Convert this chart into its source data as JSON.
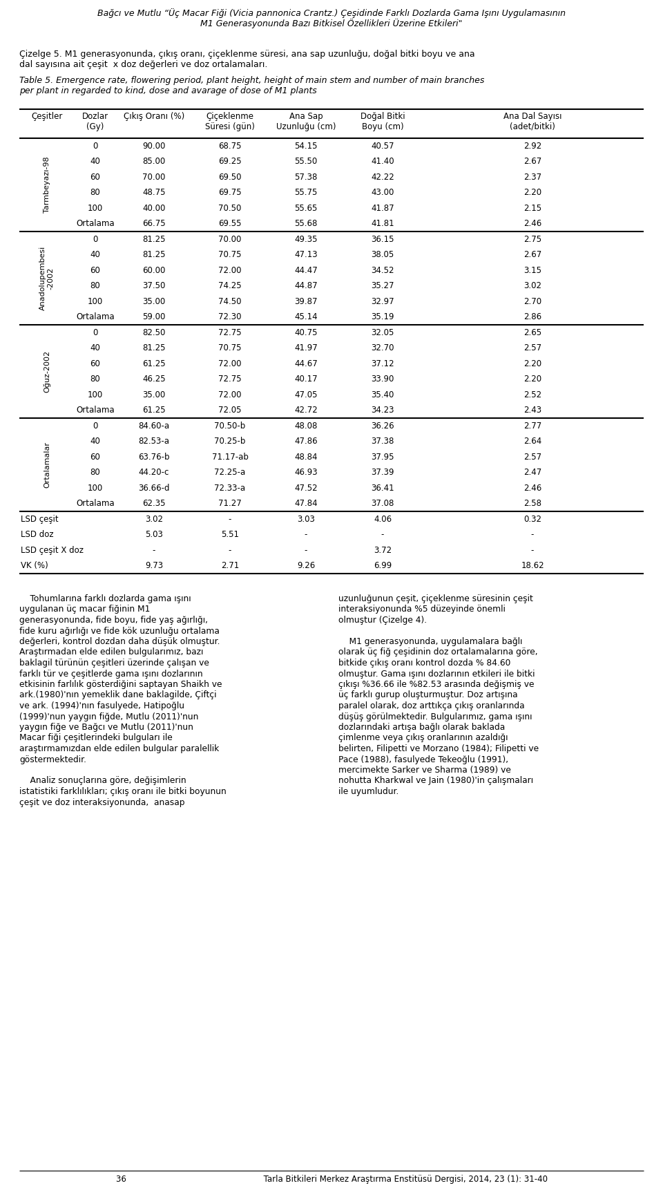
{
  "page_header_line1": "Bağcı ve Mutlu “Üç Macar Fiği (Vicia pannonica Crantz.) Çeşidinde Farklı Dozlarda Gama Işını Uygulamasının",
  "page_header_line2": "M1 Generasyonunda Bazı Bitkisel Özellikleri Üzerine Etkileri\"",
  "cizelge_line1": "Çizelge 5. M1 generasyonunda, çıkış oranı, çiçeklenme süresi, ana sap uzunluğu, doğal bitki boyu ve ana",
  "cizelge_line2": "dal sayısına ait çeşit  x doz değerleri ve doz ortalamaları.",
  "table_cap_line1": "Table 5. Emergence rate, flowering period, plant height, height of main stem and number of main branches",
  "table_cap_line2": "per plant in regarded to kind, dose and avarage of dose of M1 plants",
  "col_headers": [
    "Çeşitler",
    "Dozlar\n(Gy)",
    "Çıkış Oranı (%)",
    "Çiçeklenme\nSüresi (gün)",
    "Ana Sap\nUzunluğu (cm)",
    "Doğal Bitki\nBoyu (cm)",
    "Ana Dal Sayısı\n(adet/bitki)"
  ],
  "groups": [
    {
      "name": "Tarmbeyazı-98",
      "rows": [
        [
          "0",
          "90.00",
          "68.75",
          "54.15",
          "40.57",
          "2.92"
        ],
        [
          "40",
          "85.00",
          "69.25",
          "55.50",
          "41.40",
          "2.67"
        ],
        [
          "60",
          "70.00",
          "69.50",
          "57.38",
          "42.22",
          "2.37"
        ],
        [
          "80",
          "48.75",
          "69.75",
          "55.75",
          "43.00",
          "2.20"
        ],
        [
          "100",
          "40.00",
          "70.50",
          "55.65",
          "41.87",
          "2.15"
        ],
        [
          "Ortalama",
          "66.75",
          "69.55",
          "55.68",
          "41.81",
          "2.46"
        ]
      ]
    },
    {
      "name": "Anadolupembesi\n-2002",
      "rows": [
        [
          "0",
          "81.25",
          "70.00",
          "49.35",
          "36.15",
          "2.75"
        ],
        [
          "40",
          "81.25",
          "70.75",
          "47.13",
          "38.05",
          "2.67"
        ],
        [
          "60",
          "60.00",
          "72.00",
          "44.47",
          "34.52",
          "3.15"
        ],
        [
          "80",
          "37.50",
          "74.25",
          "44.87",
          "35.27",
          "3.02"
        ],
        [
          "100",
          "35.00",
          "74.50",
          "39.87",
          "32.97",
          "2.70"
        ],
        [
          "Ortalama",
          "59.00",
          "72.30",
          "45.14",
          "35.19",
          "2.86"
        ]
      ]
    },
    {
      "name": "Oğuz-2002",
      "rows": [
        [
          "0",
          "82.50",
          "72.75",
          "40.75",
          "32.05",
          "2.65"
        ],
        [
          "40",
          "81.25",
          "70.75",
          "41.97",
          "32.70",
          "2.57"
        ],
        [
          "60",
          "61.25",
          "72.00",
          "44.67",
          "37.12",
          "2.20"
        ],
        [
          "80",
          "46.25",
          "72.75",
          "40.17",
          "33.90",
          "2.20"
        ],
        [
          "100",
          "35.00",
          "72.00",
          "47.05",
          "35.40",
          "2.52"
        ],
        [
          "Ortalama",
          "61.25",
          "72.05",
          "42.72",
          "34.23",
          "2.43"
        ]
      ]
    },
    {
      "name": "Ortalamalar",
      "rows": [
        [
          "0",
          "84.60-a",
          "70.50-b",
          "48.08",
          "36.26",
          "2.77"
        ],
        [
          "40",
          "82.53-a",
          "70.25-b",
          "47.86",
          "37.38",
          "2.64"
        ],
        [
          "60",
          "63.76-b",
          "71.17-ab",
          "48.84",
          "37.95",
          "2.57"
        ],
        [
          "80",
          "44.20-c",
          "72.25-a",
          "46.93",
          "37.39",
          "2.47"
        ],
        [
          "100",
          "36.66-d",
          "72.33-a",
          "47.52",
          "36.41",
          "2.46"
        ],
        [
          "Ortalama",
          "62.35",
          "71.27",
          "47.84",
          "37.08",
          "2.58"
        ]
      ]
    }
  ],
  "lsd_rows": [
    [
      "LSD çeşit",
      "3.02",
      "-",
      "3.03",
      "4.06",
      "0.32"
    ],
    [
      "LSD doz",
      "5.03",
      "5.51",
      "-",
      "-",
      "-"
    ],
    [
      "LSD çeşit X doz",
      "-",
      "-",
      "-",
      "3.72",
      "-"
    ],
    [
      "VK (%)",
      "9.73",
      "2.71",
      "9.26",
      "6.99",
      "18.62"
    ]
  ],
  "body_left_lines": [
    "    Tohumlarına farklı dozlarda gama ışını",
    "uygulanan üç macar fiğinin M1",
    "generasyonunda, fide boyu, fide yaş ağırlığı,",
    "fide kuru ağırlığı ve fide kök uzunluğu ortalama",
    "değerleri, kontrol dozdan daha düşük olmuştur.",
    "Araştırmadan elde edilen bulgularımız, bazı",
    "baklagil türünün çeşitleri üzerinde çalışan ve",
    "farklı tür ve çeşitlerde gama ışını dozlarının",
    "etkisinin farlılık gösterdiğini saptayan Shaikh ve",
    "ark.(1980)'nın yemeklik dane baklagilde, Çiftçi",
    "ve ark. (1994)'nın fasulyede, Hatipoğlu",
    "(1999)'nun yaygın fiğde, Mutlu (2011)'nun",
    "yaygın fiğe ve Bağcı ve Mutlu (2011)'nun",
    "Macar fiği çeşitlerindeki bulguları ile",
    "araştırmamızdan elde edilen bulgular paralellik",
    "göstermektedir.",
    "",
    "    Analiz sonuçlarına göre, değişimlerin",
    "istatistiki farklılıkları; çıkış oranı ile bitki boyunun",
    "çeşit ve doz interaksiyonunda,  anasap"
  ],
  "body_right_lines": [
    "uzunluğunun çeşit, çiçeklenme süresinin çeşit",
    "interaksiyonunda %5 düzeyinde önemli",
    "olmuştur (Çizelge 4).",
    "",
    "    M1 generasyonunda, uygulamalara bağlı",
    "olarak üç fiğ çeşidinin doz ortalamalarına göre,",
    "bitkide çıkış oranı kontrol dozda % 84.60",
    "olmuştur. Gama ışını dozlarının etkileri ile bitki",
    "çıkışı %36.66 ile %82.53 arasında değişmiş ve",
    "üç farklı gurup oluşturmuştur. Doz artışına",
    "paralel olarak, doz arttıkça çıkış oranlarında",
    "düşüş görülmektedir. Bulgularımız, gama ışını",
    "dozlarındaki artışa bağlı olarak baklada",
    "çimlenme veya çıkış oranlarının azaldığı",
    "belirten, Filipetti ve Morzano (1984); Filipetti ve",
    "Pace (1988), fasulyede Tekeoğlu (1991),",
    "mercimekte Sarker ve Sharma (1989) ve",
    "nohutta Kharkwal ve Jain (1980)'in çalışmaları",
    "ile uyumludur."
  ],
  "footer": "36                                                     Tarla Bitkileri Merkez Araştırma Enstitüsü Dergisi, 2014, 23 (1): 31-40"
}
